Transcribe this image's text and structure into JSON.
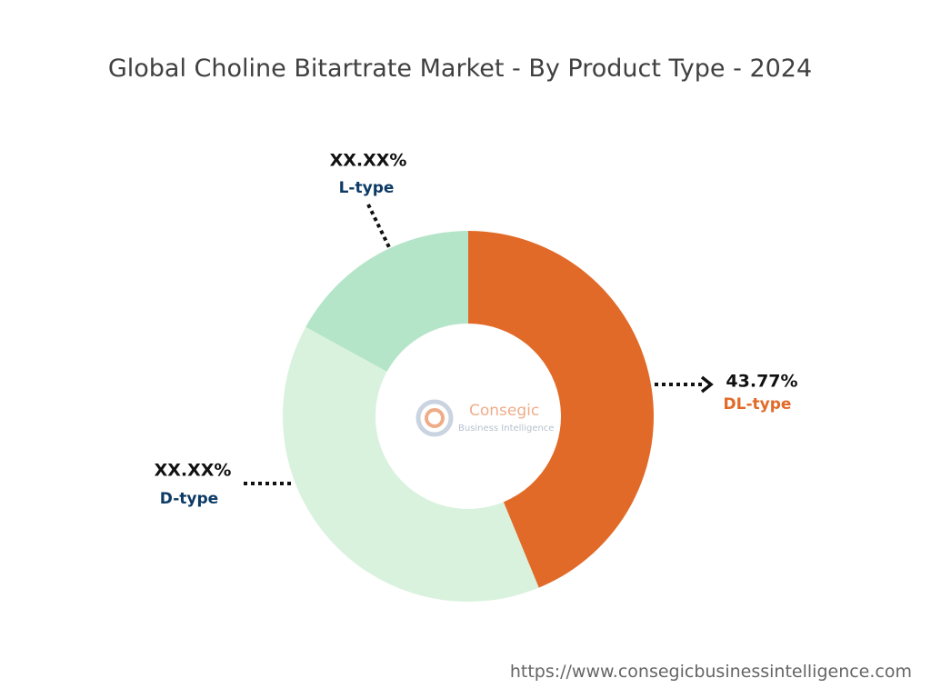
{
  "chart_data": {
    "type": "donut",
    "title": "Global Choline Bitartrate Market - By Product Type - 2024",
    "categories": [
      "DL-type",
      "D-type",
      "L-type"
    ],
    "values": [
      43.77,
      39.2,
      17
    ],
    "value_labels": [
      "43.77%",
      "XX.XX%",
      "XX.XX%"
    ],
    "colors": [
      "#e26a28",
      "#d9f2de",
      "#b4e5c8"
    ],
    "label_colors": [
      "#e26a28",
      "#0d3b66",
      "#0d3b66"
    ],
    "watermark": {
      "name": "Consegic",
      "subtitle": "Business Intelligence"
    },
    "source": "https://www.consegicbusinessintelligence.com"
  }
}
